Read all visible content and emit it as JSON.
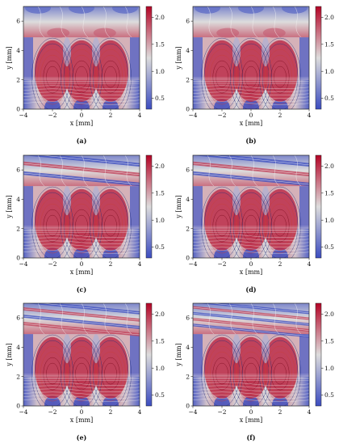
{
  "colormap": {
    "low": "#3b4cc0",
    "mid": "#dddcdc",
    "high": "#b40426",
    "contour_light": "#f4f4f4"
  },
  "chart_data": [
    {
      "type": "heatmap",
      "panel": "(a)",
      "xlabel": "x [mm]",
      "ylabel": "y [mm]",
      "xlim": [
        -4,
        4
      ],
      "ylim": [
        0,
        7
      ],
      "xticks": [
        "−4",
        "−2",
        "0",
        "2",
        "4"
      ],
      "yticks": [
        "0",
        "2",
        "4",
        "6"
      ],
      "colorbar_range": [
        0.3,
        2.2
      ],
      "colorbar_ticks": [
        "0.5",
        "1.0",
        "1.5",
        "2.0"
      ],
      "upper_region_variant": 0
    },
    {
      "type": "heatmap",
      "panel": "(b)",
      "xlabel": "x [mm]",
      "ylabel": "y [mm]",
      "xlim": [
        -4,
        4
      ],
      "ylim": [
        0,
        7
      ],
      "xticks": [
        "−4",
        "−2",
        "0",
        "2",
        "4"
      ],
      "yticks": [
        "0",
        "2",
        "4",
        "6"
      ],
      "colorbar_range": [
        0.3,
        2.2
      ],
      "colorbar_ticks": [
        "0.5",
        "1.0",
        "1.5",
        "2.0"
      ],
      "upper_region_variant": 0
    },
    {
      "type": "heatmap",
      "panel": "(c)",
      "xlabel": "x [mm]",
      "ylabel": "y [mm]",
      "xlim": [
        -4,
        4
      ],
      "ylim": [
        0,
        7
      ],
      "xticks": [
        "−4",
        "−2",
        "0",
        "2",
        "4"
      ],
      "yticks": [
        "0",
        "2",
        "4",
        "6"
      ],
      "colorbar_range": [
        0.3,
        2.2
      ],
      "colorbar_ticks": [
        "0.5",
        "1.0",
        "1.5",
        "2.0"
      ],
      "upper_region_variant": 1
    },
    {
      "type": "heatmap",
      "panel": "(d)",
      "xlabel": "x [mm]",
      "ylabel": "y [mm]",
      "xlim": [
        -4,
        4
      ],
      "ylim": [
        0,
        7
      ],
      "xticks": [
        "−4",
        "−2",
        "0",
        "2",
        "4"
      ],
      "yticks": [
        "0",
        "2",
        "4",
        "6"
      ],
      "colorbar_range": [
        0.3,
        2.2
      ],
      "colorbar_ticks": [
        "0.5",
        "1.0",
        "1.5",
        "2.0"
      ],
      "upper_region_variant": 1
    },
    {
      "type": "heatmap",
      "panel": "(e)",
      "xlabel": "x [mm]",
      "ylabel": "y [mm]",
      "xlim": [
        -4,
        4
      ],
      "ylim": [
        0,
        7
      ],
      "xticks": [
        "−4",
        "−2",
        "0",
        "2",
        "4"
      ],
      "yticks": [
        "0",
        "2",
        "4",
        "6"
      ],
      "colorbar_range": [
        0.3,
        2.2
      ],
      "colorbar_ticks": [
        "0.5",
        "1.0",
        "1.5",
        "2.0"
      ],
      "upper_region_variant": 2
    },
    {
      "type": "heatmap",
      "panel": "(f)",
      "xlabel": "x [mm]",
      "ylabel": "y [mm]",
      "xlim": [
        -4,
        4
      ],
      "ylim": [
        0,
        7
      ],
      "xticks": [
        "−4",
        "−2",
        "0",
        "2",
        "4"
      ],
      "yticks": [
        "0",
        "2",
        "4",
        "6"
      ],
      "colorbar_range": [
        0.3,
        2.2
      ],
      "colorbar_ticks": [
        "0.5",
        "1.0",
        "1.5",
        "2.0"
      ],
      "upper_region_variant": 3
    }
  ]
}
